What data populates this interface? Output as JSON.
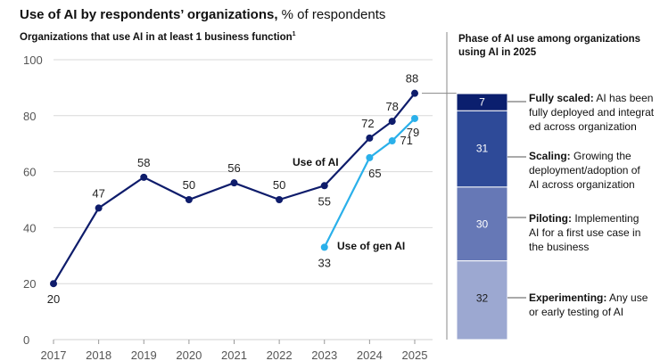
{
  "header": {
    "title_bold": "Use of AI by respondents’ organizations,",
    "title_rest": " % of respondents",
    "subtitle": "Organizations that use AI in at least 1 business function",
    "subtitle_sup": "1",
    "right_title": "Phase of AI use among organizations using AI in 2025"
  },
  "colors": {
    "ai_line": "#0e1c6b",
    "gen_ai_line": "#2ab0ea",
    "grid": "#d9d9d9",
    "seg_fully_scaled": "#0b1f6e",
    "seg_scaling": "#2e4a98",
    "seg_piloting": "#6678b6",
    "seg_experimenting": "#9ca8d1"
  },
  "chart_data": [
    {
      "type": "line",
      "xlabel": "",
      "ylabel": "",
      "ylim": [
        0,
        100
      ],
      "yticks": [
        0,
        20,
        40,
        60,
        80,
        100
      ],
      "x_tick_labels": [
        "2017",
        "2018",
        "2019",
        "2020",
        "2021",
        "2022",
        "2023",
        "2024",
        "2025"
      ],
      "grid": true,
      "series": [
        {
          "name": "Use of AI",
          "x": [
            2017,
            2018,
            2019,
            2020,
            2021,
            2022,
            2023,
            2024,
            2024.5,
            2025
          ],
          "values": [
            20,
            47,
            58,
            50,
            56,
            50,
            55,
            72,
            78,
            88
          ],
          "labels": [
            "20",
            "47",
            "58",
            "50",
            "56",
            "50",
            "55",
            "72",
            "78",
            "88"
          ]
        },
        {
          "name": "Use of gen AI",
          "x": [
            2023,
            2024,
            2024.5,
            2025
          ],
          "values": [
            33,
            65,
            71,
            79
          ],
          "labels": [
            "33",
            "65",
            "71",
            "79"
          ]
        }
      ]
    },
    {
      "type": "bar",
      "stacked": true,
      "categories": [
        "Fully scaled",
        "Scaling",
        "Piloting",
        "Experimenting"
      ],
      "values": [
        7,
        31,
        30,
        32
      ],
      "descriptions": [
        "AI has been fully deployed and integrated across organization",
        "Growing the deployment/adoption of AI across organization",
        "Implementing AI for a first use case in the business",
        "Any use or early testing of AI"
      ]
    }
  ],
  "phases": {
    "fully_scaled": {
      "name": "Fully scaled:",
      "desc_1": " AI has been",
      "desc_2": "fully deployed and integrat",
      "desc_3": "ed across organization"
    },
    "scaling": {
      "name": "Scaling:",
      "desc_1": " Growing the",
      "desc_2": "deployment/adoption of",
      "desc_3": "AI across organization"
    },
    "piloting": {
      "name": "Piloting:",
      "desc_1": " Implementing",
      "desc_2": "AI for a first use case in",
      "desc_3": "the business"
    },
    "experimenting": {
      "name": "Experimenting:",
      "desc_1": " Any use",
      "desc_2": "or early testing of AI"
    }
  }
}
